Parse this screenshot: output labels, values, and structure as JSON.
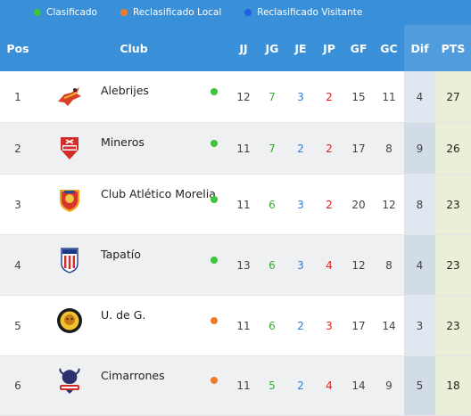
{
  "legend": [
    {
      "label": "Clasificado",
      "color": "#3ec43a"
    },
    {
      "label": "Reclasificado Local",
      "color": "#f07a2a"
    },
    {
      "label": "Reclasificado Visitante",
      "color": "#1f5fe0"
    }
  ],
  "header": {
    "pos": "Pos",
    "club": "Club",
    "jj": "JJ",
    "jg": "JG",
    "je": "JE",
    "jp": "JP",
    "gf": "GF",
    "gc": "GC",
    "dif": "Dif",
    "pts": "PTS"
  },
  "rows": [
    {
      "pos": "1",
      "club": "Alebrijes",
      "status": "green",
      "jj": "12",
      "jg": "7",
      "je": "3",
      "jp": "2",
      "gf": "15",
      "gc": "11",
      "dif": "4",
      "pts": "27"
    },
    {
      "pos": "2",
      "club": "Mineros",
      "status": "green",
      "jj": "11",
      "jg": "7",
      "je": "2",
      "jp": "2",
      "gf": "17",
      "gc": "8",
      "dif": "9",
      "pts": "26"
    },
    {
      "pos": "3",
      "club": "Club Atlético Morelia",
      "status": "green",
      "jj": "11",
      "jg": "6",
      "je": "3",
      "jp": "2",
      "gf": "20",
      "gc": "12",
      "dif": "8",
      "pts": "23"
    },
    {
      "pos": "4",
      "club": "Tapatío",
      "status": "green",
      "jj": "13",
      "jg": "6",
      "je": "3",
      "jp": "4",
      "gf": "12",
      "gc": "8",
      "dif": "4",
      "pts": "23"
    },
    {
      "pos": "5",
      "club": "U. de G.",
      "status": "orange",
      "jj": "11",
      "jg": "6",
      "je": "2",
      "jp": "3",
      "gf": "17",
      "gc": "14",
      "dif": "3",
      "pts": "23"
    },
    {
      "pos": "6",
      "club": "Cimarrones",
      "status": "orange",
      "jj": "11",
      "jg": "5",
      "je": "2",
      "jp": "4",
      "gf": "14",
      "gc": "9",
      "dif": "5",
      "pts": "18"
    }
  ],
  "logos": [
    "alebrijes-logo",
    "mineros-logo",
    "morelia-logo",
    "tapatio-logo",
    "udeg-logo",
    "cimarrones-logo"
  ],
  "colors": {
    "header_bg": "#3a8fd9",
    "green": "#3ec43a",
    "orange": "#f07a2a",
    "blue": "#1f5fe0"
  }
}
